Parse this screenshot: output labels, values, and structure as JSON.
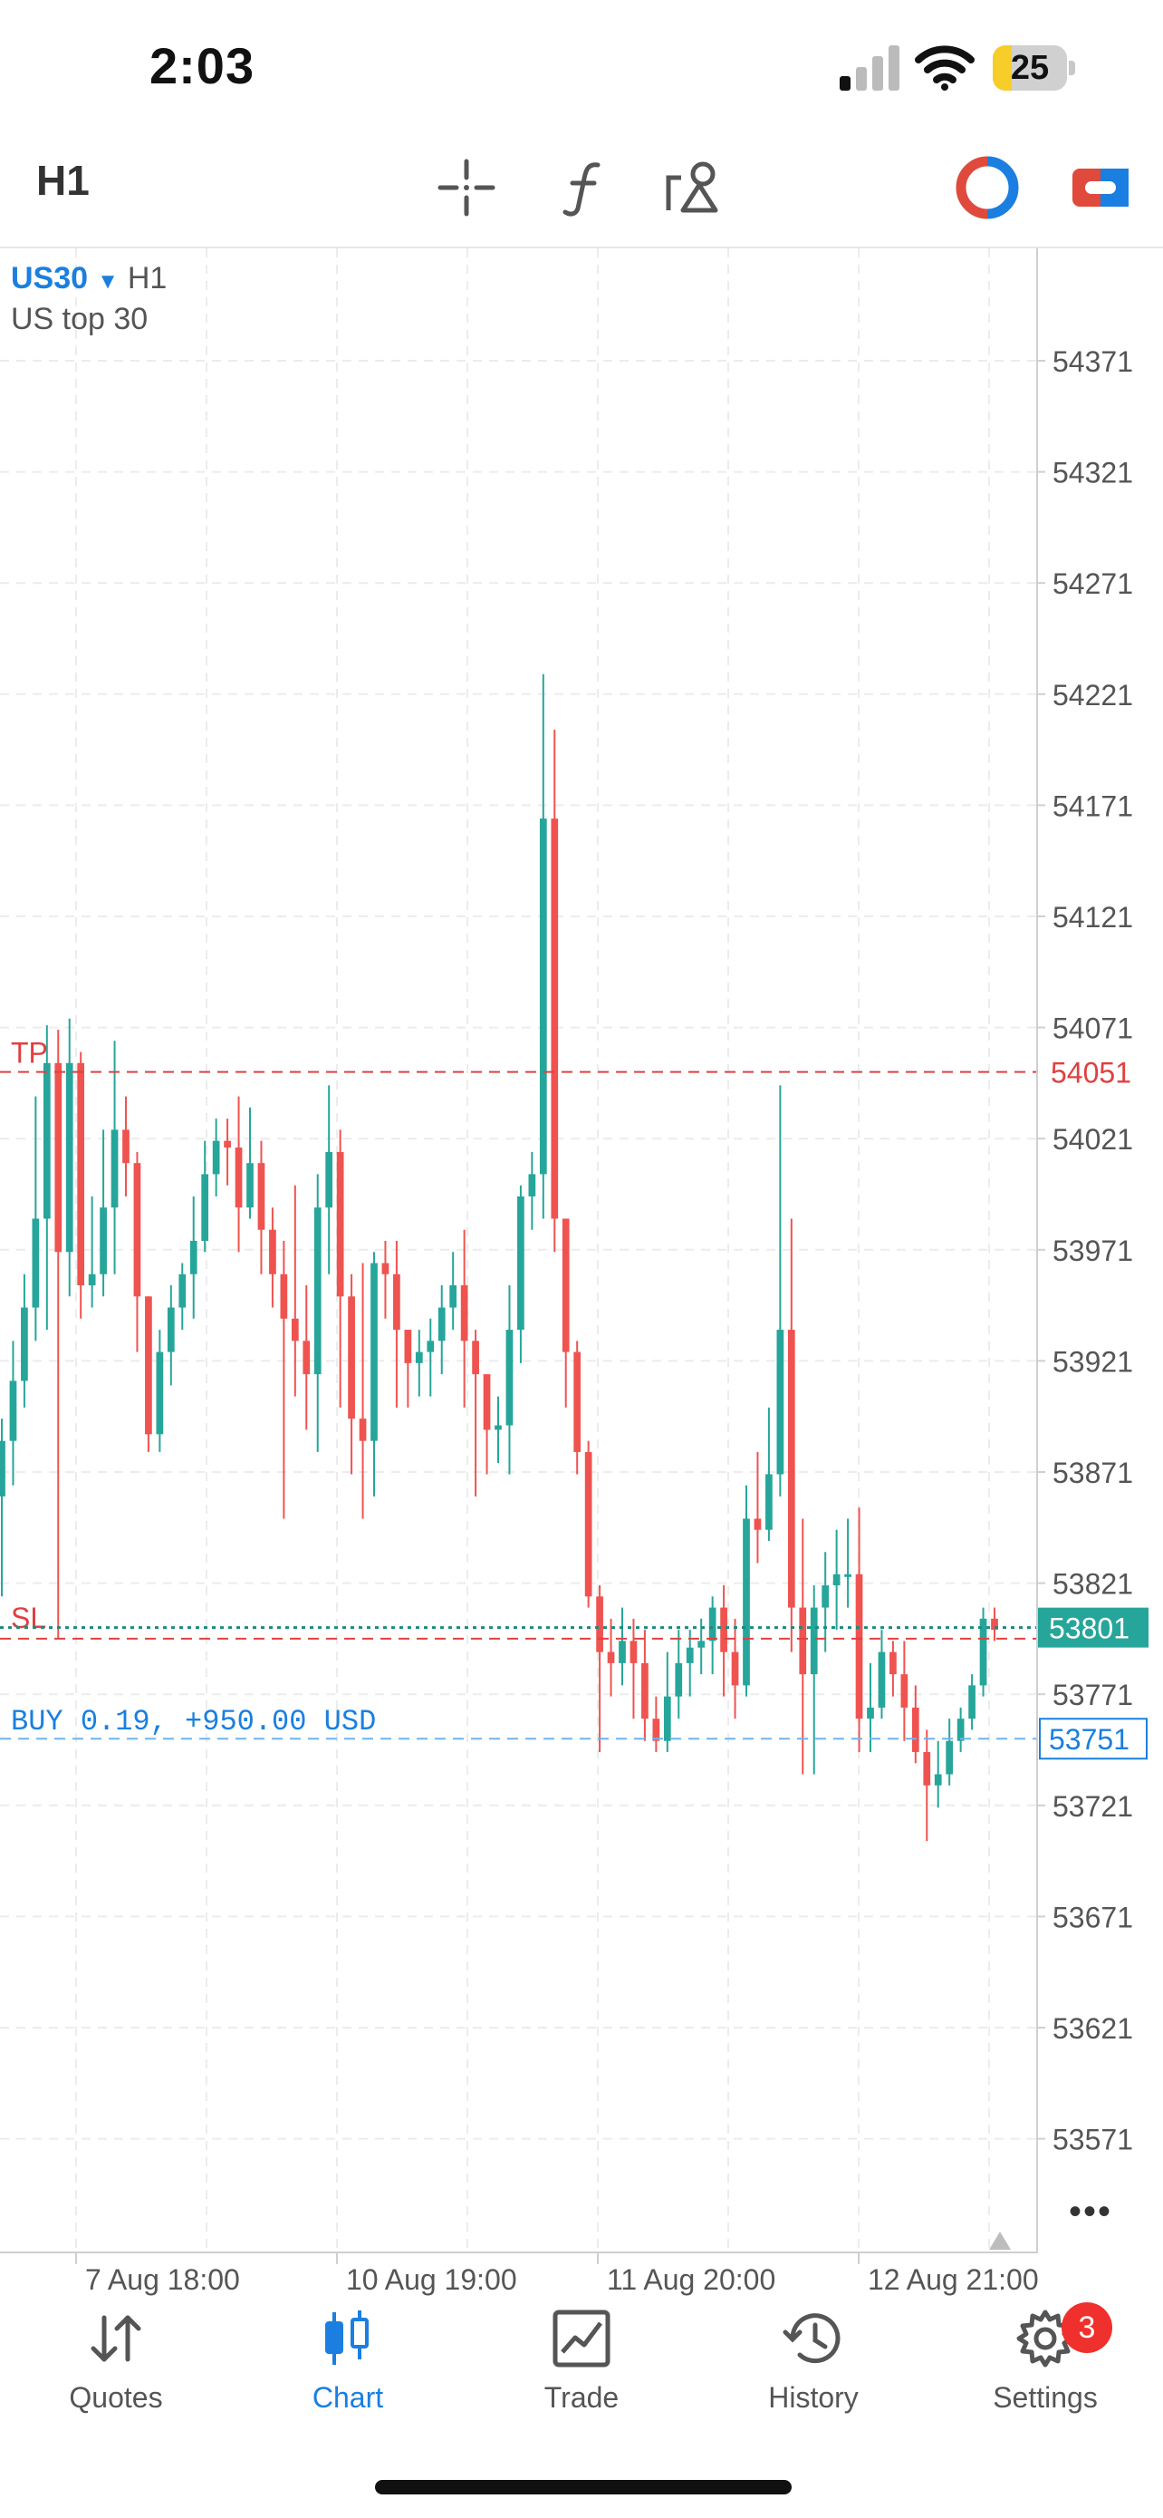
{
  "status_bar": {
    "time": "2:03",
    "battery": "25",
    "battery_level": 0.25
  },
  "toolbar": {
    "timeframe": "H1",
    "icons": [
      "crosshair-icon",
      "indicators-icon",
      "objects-icon",
      "one-click-trading-icon",
      "trade-panel-icon"
    ]
  },
  "chart": {
    "symbol": "US30",
    "timeframe": "H1",
    "description": "US top 30",
    "tp_label": "TP",
    "tp_price": "54051",
    "sl_label": "SL",
    "current_price": "53801",
    "position_label": "BUY 0.19, +950.00 USD",
    "position_price": "53751",
    "more": "•••",
    "colors": {
      "up": "#26a69a",
      "down": "#ef5350",
      "tp_sl": "#e04040",
      "position": "#1a7fe0",
      "bid": "#1b8a7e"
    }
  },
  "chart_data": {
    "type": "candlestick",
    "y_ticks": [
      "54371",
      "54321",
      "54271",
      "54221",
      "54171",
      "54121",
      "54071",
      "54021",
      "53971",
      "53921",
      "53871",
      "53821",
      "53771",
      "53721",
      "53671",
      "53621",
      "53571"
    ],
    "x_ticks": [
      "7 Aug 18:00",
      "10 Aug 19:00",
      "11 Aug 20:00",
      "12 Aug 21:00"
    ],
    "levels": {
      "tp": 54051,
      "sl": 53796,
      "bid": 53801,
      "position": 53751
    },
    "candles": [
      [
        53860,
        53885,
        53815,
        53895
      ],
      [
        53885,
        53912,
        53865,
        53930
      ],
      [
        53912,
        53945,
        53900,
        53960
      ],
      [
        53945,
        53985,
        53930,
        54040
      ],
      [
        53985,
        54055,
        53935,
        54072
      ],
      [
        54055,
        53970,
        53796,
        54070
      ],
      [
        53970,
        54055,
        53950,
        54075
      ],
      [
        54055,
        53955,
        53940,
        54060
      ],
      [
        53955,
        53960,
        53945,
        53995
      ],
      [
        53960,
        53990,
        53950,
        54025
      ],
      [
        53990,
        54025,
        53960,
        54065
      ],
      [
        54025,
        54010,
        53995,
        54040
      ],
      [
        54010,
        53950,
        53925,
        54015
      ],
      [
        53950,
        53888,
        53880,
        53950
      ],
      [
        53888,
        53925,
        53880,
        53935
      ],
      [
        53925,
        53945,
        53910,
        53955
      ],
      [
        53945,
        53960,
        53935,
        53965
      ],
      [
        53960,
        53975,
        53940,
        53995
      ],
      [
        53975,
        54005,
        53970,
        54020
      ],
      [
        54005,
        54020,
        53995,
        54030
      ],
      [
        54020,
        54017,
        54000,
        54030
      ],
      [
        54017,
        53990,
        53970,
        54040
      ],
      [
        53990,
        54010,
        53985,
        54035
      ],
      [
        54010,
        53980,
        53960,
        54020
      ],
      [
        53980,
        53960,
        53945,
        53990
      ],
      [
        53960,
        53940,
        53850,
        53975
      ],
      [
        53940,
        53930,
        53905,
        54000
      ],
      [
        53930,
        53915,
        53890,
        53955
      ],
      [
        53915,
        53990,
        53880,
        54005
      ],
      [
        53990,
        54015,
        53960,
        54045
      ],
      [
        54015,
        53950,
        53900,
        54025
      ],
      [
        53950,
        53895,
        53870,
        53960
      ],
      [
        53895,
        53885,
        53850,
        53965
      ],
      [
        53885,
        53965,
        53860,
        53970
      ],
      [
        53965,
        53960,
        53940,
        53975
      ],
      [
        53960,
        53935,
        53900,
        53975
      ],
      [
        53935,
        53920,
        53900,
        53935
      ],
      [
        53920,
        53925,
        53905,
        53935
      ],
      [
        53925,
        53930,
        53905,
        53940
      ],
      [
        53930,
        53945,
        53915,
        53955
      ],
      [
        53945,
        53955,
        53935,
        53970
      ],
      [
        53955,
        53930,
        53900,
        53980
      ],
      [
        53930,
        53915,
        53860,
        53935
      ],
      [
        53915,
        53890,
        53870,
        53910
      ],
      [
        53890,
        53892,
        53875,
        53905
      ],
      [
        53892,
        53935,
        53870,
        53955
      ],
      [
        53935,
        53995,
        53920,
        54000
      ],
      [
        53995,
        54005,
        53980,
        54015
      ],
      [
        54005,
        54165,
        53985,
        54230
      ],
      [
        54165,
        53985,
        53970,
        54205
      ],
      [
        53985,
        53925,
        53900,
        53985
      ],
      [
        53925,
        53880,
        53870,
        53930
      ],
      [
        53880,
        53815,
        53810,
        53885
      ],
      [
        53815,
        53790,
        53745,
        53820
      ],
      [
        53790,
        53785,
        53770,
        53805
      ],
      [
        53785,
        53795,
        53775,
        53810
      ],
      [
        53795,
        53785,
        53760,
        53805
      ],
      [
        53785,
        53760,
        53750,
        53800
      ],
      [
        53760,
        53750,
        53745,
        53770
      ],
      [
        53750,
        53770,
        53745,
        53790
      ],
      [
        53770,
        53785,
        53760,
        53800
      ],
      [
        53785,
        53792,
        53770,
        53800
      ],
      [
        53792,
        53795,
        53780,
        53805
      ],
      [
        53795,
        53810,
        53780,
        53815
      ],
      [
        53810,
        53790,
        53770,
        53820
      ],
      [
        53790,
        53775,
        53760,
        53805
      ],
      [
        53775,
        53850,
        53770,
        53865
      ],
      [
        53850,
        53845,
        53830,
        53880
      ],
      [
        53845,
        53870,
        53840,
        53900
      ],
      [
        53870,
        53935,
        53860,
        54045
      ],
      [
        53935,
        53810,
        53790,
        53985
      ],
      [
        53810,
        53780,
        53735,
        53850
      ],
      [
        53780,
        53810,
        53735,
        53820
      ],
      [
        53810,
        53820,
        53790,
        53835
      ],
      [
        53820,
        53825,
        53800,
        53845
      ],
      [
        53825,
        53825,
        53810,
        53850
      ],
      [
        53825,
        53760,
        53745,
        53855
      ],
      [
        53760,
        53765,
        53745,
        53785
      ],
      [
        53765,
        53790,
        53760,
        53800
      ],
      [
        53790,
        53780,
        53770,
        53795
      ],
      [
        53780,
        53765,
        53750,
        53795
      ],
      [
        53765,
        53745,
        53740,
        53775
      ],
      [
        53745,
        53730,
        53705,
        53755
      ],
      [
        53730,
        53735,
        53720,
        53750
      ],
      [
        53735,
        53750,
        53730,
        53760
      ],
      [
        53750,
        53760,
        53745,
        53765
      ],
      [
        53760,
        53775,
        53755,
        53780
      ],
      [
        53775,
        53805,
        53770,
        53810
      ],
      [
        53805,
        53800,
        53795,
        53810
      ]
    ]
  },
  "tabs": [
    {
      "label": "Quotes",
      "icon": "quotes-icon"
    },
    {
      "label": "Chart",
      "icon": "chart-icon"
    },
    {
      "label": "Trade",
      "icon": "trade-icon"
    },
    {
      "label": "History",
      "icon": "history-icon"
    },
    {
      "label": "Settings",
      "icon": "settings-icon",
      "badge": "3"
    }
  ]
}
